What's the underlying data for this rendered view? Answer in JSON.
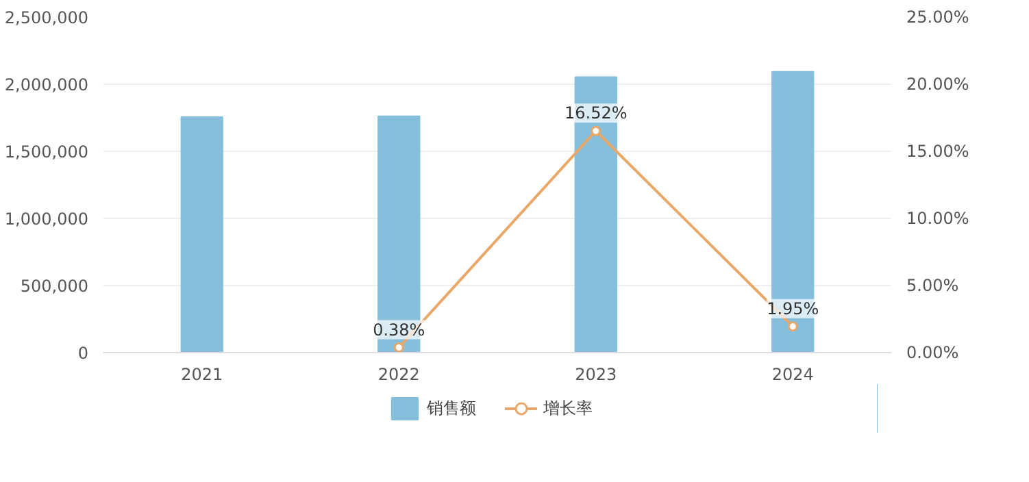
{
  "chart_data": {
    "type": "bar",
    "categories": [
      "2021",
      "2022",
      "2023",
      "2024"
    ],
    "series": [
      {
        "name": "销售额",
        "color": "#85bfdc",
        "values": [
          1755000,
          1762000,
          2053000,
          2093000
        ]
      },
      {
        "name": "增长率",
        "type": "line",
        "axis": "y2",
        "color": "#e8a86a",
        "marker": "circle",
        "values": [
          null,
          0.38,
          16.52,
          1.95
        ],
        "value_labels": [
          null,
          "0.38%",
          "16.52%",
          "1.95%"
        ]
      }
    ],
    "ylim": [
      0,
      2500000
    ],
    "yticks": [
      {
        "value": 0,
        "label": "0"
      },
      {
        "value": 500000,
        "label": "500,000"
      },
      {
        "value": 1000000,
        "label": "1,000,000"
      },
      {
        "value": 1500000,
        "label": "1,500,000"
      },
      {
        "value": 2000000,
        "label": "2,000,000"
      },
      {
        "value": 2500000,
        "label": "2,500,000"
      }
    ],
    "y2lim": [
      0,
      25
    ],
    "y2ticks": [
      {
        "value": 0,
        "label": "0.00%"
      },
      {
        "value": 5,
        "label": "5.00%"
      },
      {
        "value": 10,
        "label": "10.00%"
      },
      {
        "value": 15,
        "label": "15.00%"
      },
      {
        "value": 20,
        "label": "20.00%"
      },
      {
        "value": 25,
        "label": "25.00%"
      }
    ],
    "grid": "y",
    "legend": "bottom"
  }
}
